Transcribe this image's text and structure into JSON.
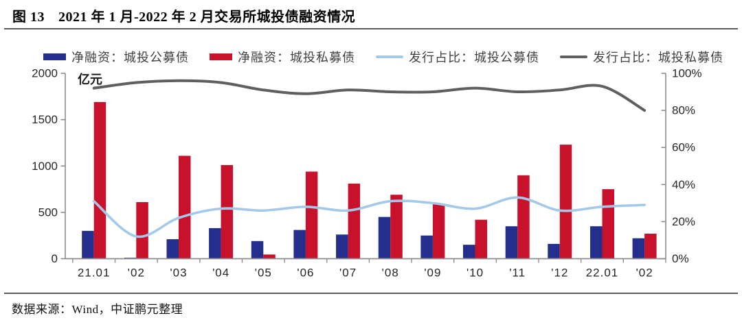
{
  "figure": {
    "label": "图 13",
    "title": "2021 年 1 月-2022 年 2 月交易所城投债融资情况"
  },
  "source_note": "数据来源：Wind，中证鹏元整理",
  "chart_data": {
    "type": "combo-bar-line",
    "unit_label": "亿元",
    "categories": [
      "21.01",
      "'02",
      "'03",
      "'04",
      "'05",
      "'06",
      "'07",
      "'08",
      "'09",
      "'10",
      "'11",
      "'12",
      "22.01",
      "'02"
    ],
    "series": [
      {
        "name": "净融资：城投公募债",
        "type": "bar",
        "axis": "left",
        "color": "#242E8D",
        "values": [
          300,
          10,
          210,
          330,
          190,
          310,
          260,
          450,
          250,
          150,
          350,
          160,
          350,
          220
        ]
      },
      {
        "name": "净融资：城投私募债",
        "type": "bar",
        "axis": "left",
        "color": "#C8112B",
        "values": [
          1690,
          610,
          1110,
          1010,
          45,
          940,
          810,
          690,
          590,
          420,
          900,
          1230,
          750,
          270
        ]
      },
      {
        "name": "发行占比：城投公募债",
        "type": "line",
        "axis": "right",
        "color": "#A3C8E8",
        "values": [
          31,
          12,
          22,
          27,
          26,
          28,
          26,
          31,
          30,
          27,
          33,
          26,
          28,
          29
        ]
      },
      {
        "name": "发行占比：城投私募债",
        "type": "line",
        "axis": "right",
        "color": "#5F5F5F",
        "values": [
          92,
          95,
          96,
          95,
          91,
          89,
          91,
          90,
          90,
          92,
          90,
          91,
          93,
          80
        ]
      }
    ],
    "left_axis": {
      "title": "亿元",
      "min": 0,
      "max": 2000,
      "tick_step": 500,
      "tick_labels": [
        "0",
        "500",
        "1000",
        "1500",
        "2000"
      ]
    },
    "right_axis": {
      "min": 0,
      "max": 100,
      "tick_step": 20,
      "tick_labels": [
        "0%",
        "20%",
        "40%",
        "60%",
        "80%",
        "100%"
      ]
    },
    "legend_position": "top",
    "grid": false
  }
}
